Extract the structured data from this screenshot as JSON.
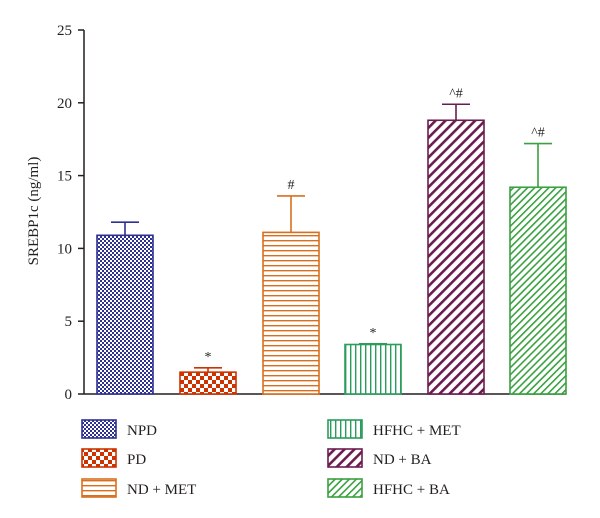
{
  "chart_data": {
    "type": "bar",
    "ylabel": "SREBP1c (ng/ml)",
    "ylim": [
      0,
      25
    ],
    "yticks": [
      0,
      5,
      10,
      15,
      20,
      25
    ],
    "grid": false,
    "legend_position": "bottom",
    "categories": [
      "NPD",
      "PD",
      "ND + MET",
      "HFHC + MET",
      "ND + BA",
      "HFHC + BA"
    ],
    "values": [
      10.9,
      1.5,
      11.1,
      3.4,
      18.8,
      14.2
    ],
    "errors": [
      0.9,
      0.3,
      2.5,
      0.05,
      1.1,
      3.0
    ],
    "annotations": [
      "",
      "*",
      "#",
      "*",
      "^#",
      "^#"
    ],
    "colors": [
      "#2e3192",
      "#cc3300",
      "#d86f1f",
      "#2a9d5c",
      "#6b1c4f",
      "#3aa040"
    ],
    "patterns": [
      "checker-fine",
      "checker-large",
      "horizontal",
      "vertical",
      "diagonal",
      "diagonal-dense"
    ]
  }
}
